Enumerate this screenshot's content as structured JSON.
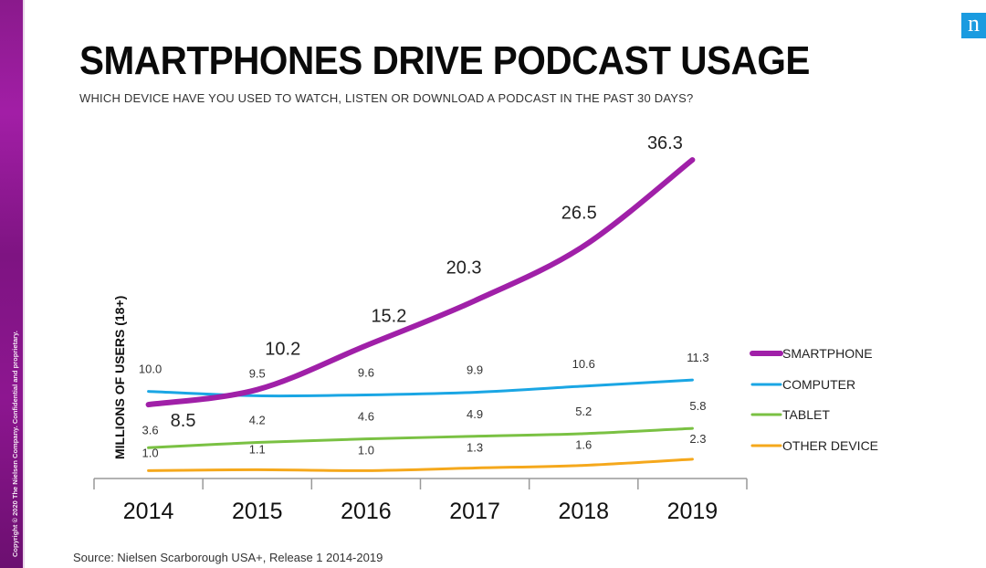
{
  "sidebar": {
    "copyright": "Copyright © 2020 The Nielsen Company. Confidential and proprietary."
  },
  "logo": {
    "letter": "n",
    "color": "#1a9be0"
  },
  "header": {
    "title": "SMARTPHONES DRIVE PODCAST USAGE",
    "subtitle": "WHICH DEVICE HAVE YOU USED TO WATCH, LISTEN OR DOWNLOAD A PODCAST IN THE PAST 30 DAYS?"
  },
  "footer": {
    "source": "Source: Nielsen Scarborough USA+, Release 1 2014-2019"
  },
  "chart_data": {
    "type": "line",
    "title": "SMARTPHONES DRIVE PODCAST USAGE",
    "subtitle": "WHICH DEVICE HAVE YOU USED TO WATCH, LISTEN OR DOWNLOAD A PODCAST IN THE PAST 30 DAYS?",
    "xlabel": "",
    "ylabel": "MILLIONS OF USERS (18+)",
    "categories": [
      "2014",
      "2015",
      "2016",
      "2017",
      "2018",
      "2019"
    ],
    "ylim": [
      0,
      38
    ],
    "grid": false,
    "legend_position": "right",
    "series": [
      {
        "name": "SMARTPHONE",
        "color": "#a020a8",
        "values": [
          8.5,
          10.2,
          15.2,
          20.3,
          26.5,
          36.3
        ],
        "labels": [
          "8.5",
          "10.2",
          "15.2",
          "20.3",
          "26.5",
          "36.3"
        ]
      },
      {
        "name": "COMPUTER",
        "color": "#1aa6e4",
        "values": [
          10.0,
          9.5,
          9.6,
          9.9,
          10.6,
          11.3
        ],
        "labels": [
          "10.0",
          "9.5",
          "9.6",
          "9.9",
          "10.6",
          "11.3"
        ]
      },
      {
        "name": "TABLET",
        "color": "#7ac143",
        "values": [
          3.6,
          4.2,
          4.6,
          4.9,
          5.2,
          5.8
        ],
        "labels": [
          "3.6",
          "4.2",
          "4.6",
          "4.9",
          "5.2",
          "5.8"
        ]
      },
      {
        "name": "OTHER DEVICE",
        "color": "#f5a81c",
        "values": [
          1.0,
          1.1,
          1.0,
          1.3,
          1.6,
          2.3
        ],
        "labels": [
          "1.0",
          "1.1",
          "1.0",
          "1.3",
          "1.6",
          "2.3"
        ]
      }
    ],
    "source": "Source: Nielsen Scarborough USA+, Release 1 2014-2019"
  }
}
